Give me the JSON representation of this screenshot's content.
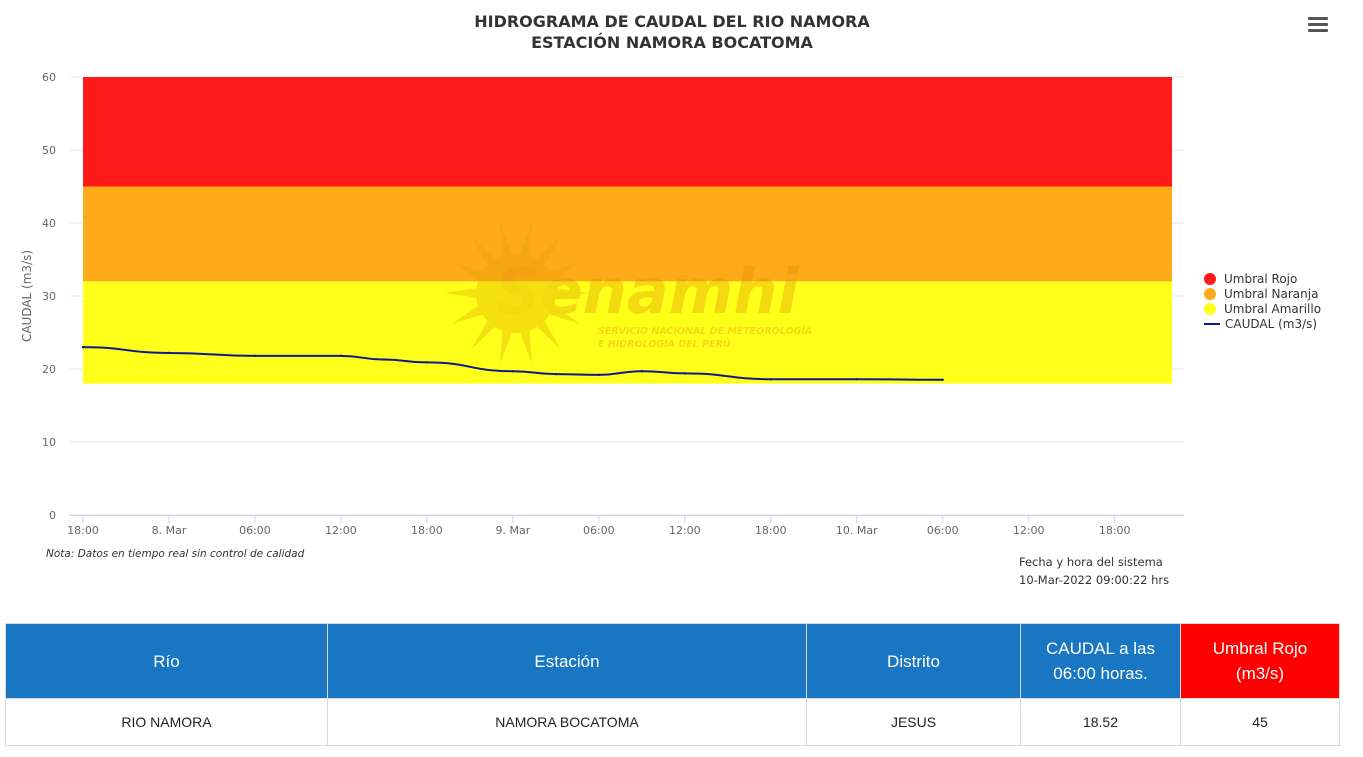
{
  "chart_data": {
    "type": "line",
    "title": "HIDROGRAMA DE CAUDAL DEL RIO NAMORA",
    "subtitle": "ESTACIÓN NAMORA BOCATOMA",
    "ylabel": "CAUDAL (m3/s)",
    "xlabel": "",
    "ylim": [
      0,
      60
    ],
    "yticks": [
      0,
      10,
      20,
      30,
      40,
      50,
      60
    ],
    "xlim": [
      "2022-03-07 18:00",
      "2022-03-10 22:00"
    ],
    "xticks": [
      {
        "t": "2022-03-07 18:00",
        "label": "18:00"
      },
      {
        "t": "2022-03-08 00:00",
        "label": "8. Mar"
      },
      {
        "t": "2022-03-08 06:00",
        "label": "06:00"
      },
      {
        "t": "2022-03-08 12:00",
        "label": "12:00"
      },
      {
        "t": "2022-03-08 18:00",
        "label": "18:00"
      },
      {
        "t": "2022-03-09 00:00",
        "label": "9. Mar"
      },
      {
        "t": "2022-03-09 06:00",
        "label": "06:00"
      },
      {
        "t": "2022-03-09 12:00",
        "label": "12:00"
      },
      {
        "t": "2022-03-09 18:00",
        "label": "18:00"
      },
      {
        "t": "2022-03-10 00:00",
        "label": "10. Mar"
      },
      {
        "t": "2022-03-10 06:00",
        "label": "06:00"
      },
      {
        "t": "2022-03-10 12:00",
        "label": "12:00"
      },
      {
        "t": "2022-03-10 18:00",
        "label": "18:00"
      }
    ],
    "bands": [
      {
        "name": "Umbral Rojo",
        "from": 45,
        "to": 60,
        "color": "#ff1a1a"
      },
      {
        "name": "Umbral Naranja",
        "from": 32,
        "to": 45,
        "color": "#ffab19"
      },
      {
        "name": "Umbral Amarillo",
        "from": 18,
        "to": 32,
        "color": "#ffff19"
      }
    ],
    "series": [
      {
        "name": "CAUDAL (m3/s)",
        "color": "#0d1a8c",
        "points": [
          [
            "2022-03-07 18:00",
            23.0
          ],
          [
            "2022-03-08 00:00",
            22.2
          ],
          [
            "2022-03-08 06:00",
            21.8
          ],
          [
            "2022-03-08 12:00",
            21.8
          ],
          [
            "2022-03-08 15:00",
            21.3
          ],
          [
            "2022-03-08 18:00",
            20.9
          ],
          [
            "2022-03-09 00:00",
            19.7
          ],
          [
            "2022-03-09 03:00",
            19.3
          ],
          [
            "2022-03-09 06:00",
            19.2
          ],
          [
            "2022-03-09 09:00",
            19.7
          ],
          [
            "2022-03-09 12:00",
            19.4
          ],
          [
            "2022-03-09 18:00",
            18.6
          ],
          [
            "2022-03-10 00:00",
            18.6
          ],
          [
            "2022-03-10 06:00",
            18.52
          ]
        ]
      }
    ],
    "grid": true,
    "legend_position": "right"
  },
  "legend": [
    {
      "label": "Umbral Rojo",
      "color": "#ff1a1a",
      "kind": "dot"
    },
    {
      "label": "Umbral Naranja",
      "color": "#ffab19",
      "kind": "dot"
    },
    {
      "label": "Umbral Amarillo",
      "color": "#ffff19",
      "kind": "dot"
    },
    {
      "label": "CAUDAL (m3/s)",
      "color": "#0d1a8c",
      "kind": "line"
    }
  ],
  "watermark": {
    "brand": "Senamhi",
    "line1": "SERVICIO NACIONAL DE METEOROLOGÍA",
    "line2": "E HIDROLOGÍA DEL PERÚ"
  },
  "menu_icon": "hamburger-menu-icon",
  "note": "Nota: Datos en tiempo real sin control de calidad",
  "system_time": {
    "label": "Fecha y hora del sistema",
    "value": "10-Mar-2022 09:00:22 hrs"
  },
  "table": {
    "headers": [
      "Río",
      "Estación",
      "Distrito",
      "CAUDAL a las 06:00 horas.",
      "Umbral Rojo (m3/s)"
    ],
    "row": [
      "RIO NAMORA",
      "NAMORA BOCATOMA",
      "JESUS",
      "18.52",
      "45"
    ]
  }
}
